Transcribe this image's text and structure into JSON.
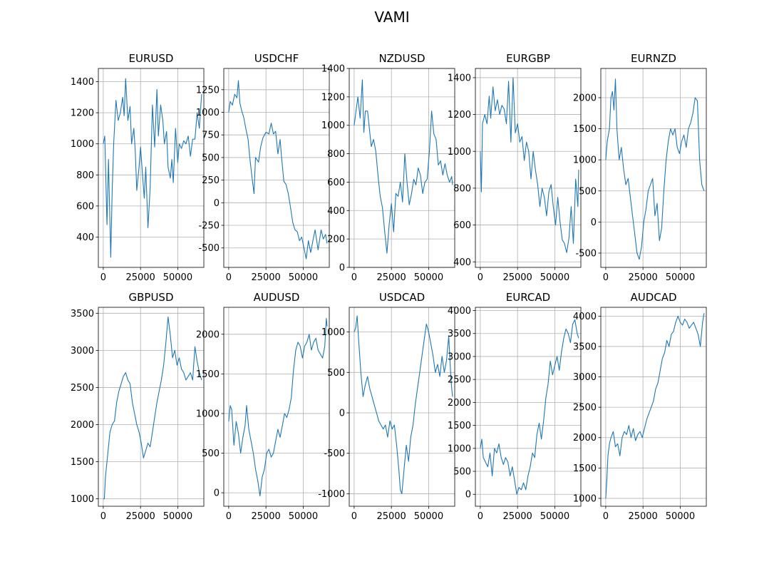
{
  "figure": {
    "title": "VAMI"
  },
  "chart_data": [
    {
      "type": "line",
      "title": "EURUSD",
      "xticks": [
        "0",
        "25000",
        "50000"
      ],
      "yticks": [
        "400",
        "600",
        "800",
        "1000",
        "1200",
        "1400"
      ],
      "xlim": [
        -3300,
        67500
      ],
      "ylim": [
        205,
        1485
      ],
      "grid": true,
      "line_color": "#1f77b4",
      "x": [
        0,
        1000,
        2500,
        3500,
        5000,
        6000,
        7000,
        8500,
        10000,
        11500,
        13000,
        14000,
        15000,
        16500,
        18000,
        19000,
        20500,
        21500,
        22500,
        24000,
        25000,
        26500,
        27500,
        28500,
        30000,
        31500,
        33000,
        34500,
        36000,
        37000,
        38500,
        40000,
        41000,
        42500,
        43500,
        45000,
        46000,
        47000,
        48500,
        50000,
        51000,
        52500,
        54000,
        55500,
        57000,
        58500,
        60000,
        61500,
        63000,
        64500,
        66000
      ],
      "values": [
        1000,
        1050,
        480,
        900,
        270,
        700,
        1000,
        1280,
        1150,
        1200,
        1300,
        1180,
        1420,
        1150,
        1240,
        1000,
        1100,
        950,
        700,
        850,
        980,
        780,
        650,
        850,
        460,
        720,
        1250,
        980,
        1350,
        1050,
        1250,
        1150,
        1000,
        1080,
        850,
        780,
        900,
        750,
        1100,
        880,
        1000,
        970,
        1020,
        1000,
        1050,
        920,
        1030,
        1030,
        1200,
        1100,
        1320
      ]
    },
    {
      "type": "line",
      "title": "USDCHF",
      "xticks": [
        "0",
        "25000",
        "50000"
      ],
      "yticks": [
        "-500",
        "-250",
        "0",
        "250",
        "500",
        "750",
        "1000",
        "1250"
      ],
      "xlim": [
        -3300,
        67500
      ],
      "ylim": [
        -715,
        1485
      ],
      "grid": true,
      "line_color": "#1f77b4",
      "x": [
        0,
        1000,
        2500,
        4000,
        5500,
        6500,
        7500,
        9000,
        10000,
        11500,
        13000,
        14000,
        15500,
        17000,
        18000,
        20000,
        21500,
        23000,
        25000,
        27000,
        28500,
        30000,
        31500,
        33000,
        34500,
        35500,
        37000,
        38500,
        40000,
        41500,
        43000,
        44500,
        46000,
        47500,
        49000,
        50500,
        52000,
        53500,
        55000,
        56500,
        58000,
        60000,
        62000,
        63500,
        65000,
        66000
      ],
      "values": [
        1000,
        1120,
        1080,
        1200,
        1160,
        1350,
        1100,
        1000,
        950,
        820,
        700,
        520,
        300,
        100,
        500,
        450,
        620,
        720,
        780,
        760,
        880,
        760,
        790,
        540,
        700,
        500,
        240,
        200,
        100,
        -50,
        -220,
        -300,
        -320,
        -420,
        -380,
        -500,
        -620,
        -420,
        -550,
        -420,
        -300,
        -520,
        -300,
        -400,
        -350,
        -450
      ]
    },
    {
      "type": "line",
      "title": "NZDUSD",
      "xticks": [
        "0",
        "25000",
        "50000"
      ],
      "yticks": [
        "0",
        "200",
        "400",
        "600",
        "800",
        "1000",
        "1200",
        "1400"
      ],
      "xlim": [
        -3300,
        67500
      ],
      "ylim": [
        0,
        1400
      ],
      "grid": true,
      "line_color": "#1f77b4",
      "x": [
        0,
        1000,
        2500,
        4000,
        5500,
        6500,
        7500,
        9000,
        10000,
        11500,
        13000,
        14500,
        16000,
        17500,
        19000,
        20500,
        22000,
        23500,
        25000,
        26500,
        28000,
        29500,
        31000,
        32500,
        34000,
        35500,
        37000,
        38500,
        40000,
        41500,
        43000,
        44500,
        46000,
        47500,
        49000,
        50500,
        52000,
        53500,
        55000,
        56500,
        58000,
        59500,
        61000,
        62500,
        64000,
        65500,
        66000
      ],
      "values": [
        1000,
        1080,
        1200,
        1050,
        1320,
        950,
        1100,
        1100,
        1000,
        850,
        900,
        820,
        650,
        500,
        420,
        250,
        100,
        300,
        450,
        250,
        520,
        500,
        600,
        460,
        800,
        600,
        440,
        520,
        620,
        580,
        700,
        650,
        520,
        600,
        620,
        820,
        1100,
        940,
        900,
        720,
        750,
        650,
        730,
        650,
        600,
        640,
        580
      ]
    },
    {
      "type": "line",
      "title": "EURGBP",
      "xticks": [
        "0",
        "25000",
        "50000"
      ],
      "yticks": [
        "400",
        "600",
        "800",
        "1000",
        "1200",
        "1400"
      ],
      "xlim": [
        -3300,
        67500
      ],
      "ylim": [
        370,
        1450
      ],
      "grid": true,
      "line_color": "#1f77b4",
      "x": [
        0,
        700,
        1500,
        3000,
        4500,
        6000,
        7000,
        8500,
        10000,
        11500,
        13000,
        14500,
        16000,
        17500,
        19000,
        20500,
        22000,
        23500,
        25000,
        26500,
        28000,
        29500,
        31000,
        32500,
        34000,
        35500,
        37000,
        38500,
        40000,
        41500,
        43000,
        44500,
        46000,
        47500,
        49000,
        50500,
        52000,
        53500,
        55000,
        56500,
        58000,
        59500,
        61000,
        62500,
        64000,
        65500,
        66000
      ],
      "values": [
        1000,
        780,
        1150,
        1200,
        1150,
        1300,
        1180,
        1350,
        1220,
        1280,
        1200,
        1250,
        1230,
        1150,
        1380,
        1050,
        1400,
        1100,
        1150,
        1050,
        1080,
        950,
        1050,
        1000,
        850,
        1000,
        900,
        820,
        700,
        800,
        750,
        650,
        780,
        820,
        700,
        600,
        750,
        620,
        520,
        500,
        450,
        530,
        700,
        500,
        850,
        700,
        900
      ]
    },
    {
      "type": "line",
      "title": "EURNZD",
      "xticks": [
        "0",
        "25000",
        "50000"
      ],
      "yticks": [
        "-500",
        "0",
        "500",
        "1000",
        "1500",
        "2000"
      ],
      "xlim": [
        -3300,
        67500
      ],
      "ylim": [
        -730,
        2470
      ],
      "grid": true,
      "line_color": "#1f77b4",
      "x": [
        0,
        1000,
        2500,
        3500,
        4500,
        5500,
        6500,
        7500,
        9000,
        10500,
        12000,
        13500,
        15000,
        16500,
        18000,
        19500,
        21000,
        22500,
        24000,
        25500,
        27000,
        28500,
        30000,
        31500,
        33000,
        34500,
        36000,
        37500,
        39000,
        40500,
        42000,
        43500,
        45000,
        46500,
        48000,
        49500,
        51000,
        52500,
        54000,
        55500,
        57000,
        58500,
        60000,
        61500,
        63000,
        64500,
        66000
      ],
      "values": [
        1000,
        1300,
        1500,
        2000,
        2100,
        1800,
        2300,
        1500,
        1000,
        1200,
        850,
        600,
        700,
        400,
        100,
        -200,
        -500,
        -600,
        -400,
        0,
        200,
        500,
        600,
        700,
        100,
        300,
        -300,
        -100,
        500,
        1000,
        1300,
        1500,
        1400,
        1500,
        1200,
        1100,
        1300,
        1400,
        1200,
        1500,
        1600,
        1750,
        2000,
        1950,
        1000,
        600,
        500
      ]
    },
    {
      "type": "line",
      "title": "GBPUSD",
      "xticks": [
        "0",
        "25000",
        "50000"
      ],
      "yticks": [
        "1000",
        "1500",
        "2000",
        "2500",
        "3000",
        "3500"
      ],
      "xlim": [
        -3300,
        67500
      ],
      "ylim": [
        900,
        3580
      ],
      "grid": true,
      "line_color": "#1f77b4",
      "x": [
        0,
        700,
        1500,
        2500,
        3500,
        4500,
        6000,
        7500,
        9000,
        10500,
        12000,
        13500,
        15000,
        16500,
        18000,
        19500,
        21000,
        22500,
        24000,
        25500,
        27000,
        28500,
        30000,
        31500,
        33000,
        34500,
        36000,
        37500,
        39000,
        40500,
        42000,
        43500,
        45000,
        46500,
        48000,
        49500,
        51000,
        52500,
        54000,
        55500,
        57000,
        58500,
        60000,
        61500,
        63000,
        64500,
        66000
      ],
      "values": [
        1000,
        1000,
        1300,
        1500,
        1700,
        1900,
        2000,
        2050,
        2300,
        2450,
        2550,
        2650,
        2700,
        2600,
        2550,
        2300,
        2150,
        2000,
        1900,
        1750,
        1550,
        1650,
        1750,
        1700,
        1900,
        2100,
        2300,
        2450,
        2600,
        2800,
        3100,
        3450,
        3200,
        2900,
        3000,
        2800,
        2900,
        2750,
        2700,
        2600,
        2650,
        2700,
        2600,
        3050,
        2850,
        2700,
        2600
      ]
    },
    {
      "type": "line",
      "title": "AUDUSD",
      "xticks": [
        "0",
        "25000",
        "50000"
      ],
      "yticks": [
        "0",
        "500",
        "1000",
        "1500",
        "2000"
      ],
      "xlim": [
        -3300,
        67500
      ],
      "ylim": [
        -170,
        2340
      ],
      "grid": true,
      "line_color": "#1f77b4",
      "x": [
        0,
        1000,
        2000,
        3500,
        5000,
        6500,
        8000,
        9500,
        11000,
        12000,
        13500,
        15000,
        16500,
        18000,
        19500,
        21000,
        22500,
        24000,
        25500,
        27000,
        28500,
        30000,
        31500,
        33000,
        34500,
        36000,
        37500,
        39000,
        40500,
        42000,
        43500,
        45000,
        46500,
        48000,
        49500,
        51000,
        52500,
        54000,
        55500,
        57000,
        58500,
        60000,
        61500,
        63000,
        64500,
        65500,
        66000
      ],
      "values": [
        900,
        1100,
        1050,
        600,
        900,
        750,
        500,
        700,
        850,
        1100,
        800,
        650,
        500,
        300,
        150,
        -40,
        200,
        300,
        500,
        550,
        450,
        500,
        650,
        800,
        700,
        850,
        1000,
        950,
        1050,
        1200,
        1550,
        1800,
        1900,
        1850,
        1700,
        1850,
        1900,
        2000,
        1800,
        1900,
        1950,
        1800,
        1750,
        1700,
        1850,
        2200,
        2100
      ]
    },
    {
      "type": "line",
      "title": "USDCAD",
      "xticks": [
        "0",
        "25000",
        "50000"
      ],
      "yticks": [
        "-1000",
        "-500",
        "0",
        "500",
        "1000"
      ],
      "xlim": [
        -3300,
        67500
      ],
      "ylim": [
        -1155,
        1305
      ],
      "grid": true,
      "line_color": "#1f77b4",
      "x": [
        0,
        1000,
        2000,
        3000,
        4500,
        6000,
        7500,
        9000,
        10500,
        12000,
        13500,
        15000,
        16500,
        18000,
        19500,
        21000,
        22500,
        24000,
        25500,
        27000,
        28500,
        30000,
        31000,
        32000,
        33500,
        35000,
        36500,
        38000,
        39500,
        41000,
        42500,
        44000,
        45500,
        47000,
        48500,
        50000,
        51500,
        53000,
        54500,
        56000,
        57500,
        59000,
        60500,
        62000,
        63500,
        65000,
        66000
      ],
      "values": [
        1000,
        1050,
        1200,
        900,
        500,
        200,
        350,
        450,
        300,
        200,
        100,
        0,
        -100,
        -150,
        -200,
        -150,
        -300,
        -100,
        -200,
        -150,
        -400,
        -700,
        -950,
        -1000,
        -700,
        -400,
        -600,
        -300,
        -150,
        100,
        300,
        500,
        700,
        900,
        1100,
        1000,
        850,
        700,
        500,
        600,
        450,
        700,
        500,
        650,
        950,
        400,
        200
      ]
    },
    {
      "type": "line",
      "title": "EURCAD",
      "xticks": [
        "0",
        "25000",
        "50000"
      ],
      "yticks": [
        "0",
        "500",
        "1000",
        "1500",
        "2000",
        "2500",
        "3000",
        "3500",
        "4000"
      ],
      "xlim": [
        -3300,
        67500
      ],
      "ylim": [
        -260,
        4070
      ],
      "grid": true,
      "line_color": "#1f77b4",
      "x": [
        0,
        1000,
        2000,
        3500,
        5000,
        6500,
        8000,
        9500,
        11000,
        12500,
        14000,
        15500,
        17000,
        18500,
        20000,
        21500,
        23000,
        24500,
        26000,
        27500,
        29000,
        30500,
        32000,
        33500,
        35000,
        36500,
        38000,
        39500,
        41000,
        42500,
        44000,
        45500,
        47000,
        48500,
        50000,
        51500,
        53000,
        54500,
        56000,
        57500,
        59000,
        60500,
        62000,
        63500,
        65000,
        66000
      ],
      "values": [
        1000,
        1200,
        800,
        700,
        600,
        900,
        400,
        1000,
        900,
        1100,
        800,
        650,
        800,
        700,
        400,
        600,
        300,
        0,
        150,
        100,
        250,
        100,
        400,
        600,
        900,
        800,
        1300,
        1550,
        1200,
        1600,
        2100,
        2400,
        2900,
        2600,
        2800,
        3000,
        2700,
        3100,
        3400,
        3600,
        3500,
        3300,
        3700,
        3800,
        3500,
        3400
      ]
    },
    {
      "type": "line",
      "title": "AUDCAD",
      "xticks": [
        "0",
        "25000",
        "50000"
      ],
      "yticks": [
        "1000",
        "1500",
        "2000",
        "2500",
        "3000",
        "3500",
        "4000"
      ],
      "xlim": [
        -3300,
        67500
      ],
      "ylim": [
        870,
        4145
      ],
      "grid": true,
      "line_color": "#1f77b4",
      "x": [
        0,
        700,
        1500,
        2500,
        3500,
        5000,
        6500,
        8000,
        9500,
        11000,
        12500,
        14000,
        15500,
        17000,
        18500,
        20000,
        21500,
        23000,
        24500,
        26000,
        27500,
        29000,
        30500,
        32000,
        33500,
        35000,
        36500,
        38000,
        39500,
        41000,
        42500,
        44000,
        45500,
        47000,
        48500,
        50000,
        51500,
        53000,
        54500,
        56000,
        57500,
        59000,
        60500,
        62000,
        63500,
        65000,
        66000
      ],
      "values": [
        1000,
        1300,
        1700,
        1900,
        2000,
        2100,
        1850,
        1900,
        1700,
        2000,
        2100,
        2050,
        2200,
        2000,
        2150,
        1950,
        2050,
        2100,
        2000,
        2150,
        2300,
        2400,
        2500,
        2600,
        2800,
        2900,
        3100,
        3300,
        3400,
        3600,
        3500,
        3700,
        3750,
        3900,
        4000,
        3900,
        3850,
        3950,
        3900,
        3800,
        3850,
        3900,
        3800,
        3700,
        3500,
        3900,
        4050
      ]
    }
  ]
}
